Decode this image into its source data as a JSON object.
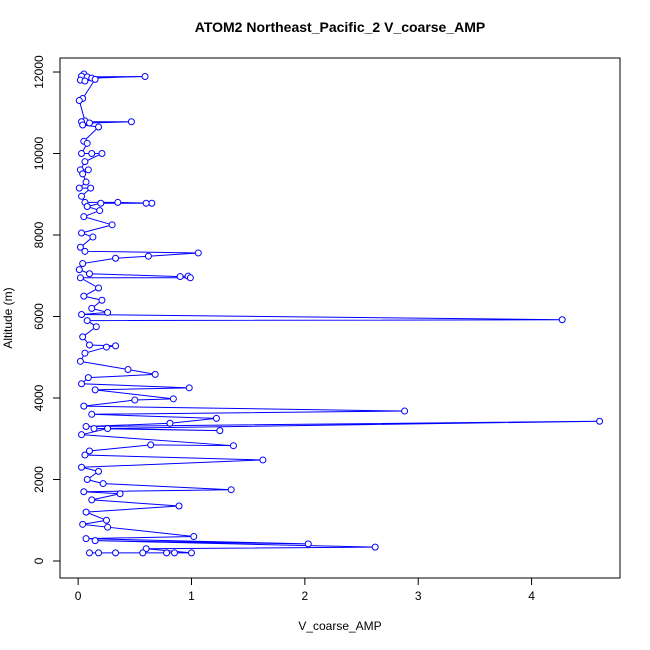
{
  "chart_data": {
    "type": "scatter-line",
    "title": "ATOM2 Northeast_Pacific_2 V_coarse_AMP",
    "x_label": "V_coarse_AMP",
    "y_label": "Altitude (m)",
    "color": "#0000ff",
    "xlim": [
      -0.16,
      4.78
    ],
    "ylim": [
      -417,
      12344
    ],
    "xticks": [
      0,
      1,
      2,
      3,
      4
    ],
    "yticks": [
      0,
      2000,
      4000,
      6000,
      8000,
      10000,
      12000
    ],
    "x": [
      0.05,
      0.03,
      0.08,
      0.59,
      0.12,
      0.02,
      0.06,
      0.15,
      0.04,
      0.01,
      0.06,
      0.03,
      0.47,
      0.1,
      0.04,
      0.18,
      0.05,
      0.08,
      0.03,
      0.12,
      0.21,
      0.06,
      0.02,
      0.09,
      0.04,
      0.07,
      0.01,
      0.11,
      0.03,
      0.06,
      0.35,
      0.65,
      0.6,
      0.2,
      0.08,
      0.19,
      0.05,
      0.3,
      0.03,
      0.13,
      0.02,
      0.06,
      1.06,
      0.62,
      0.33,
      0.04,
      0.01,
      0.1,
      0.9,
      0.97,
      0.99,
      0.02,
      0.18,
      0.05,
      0.21,
      0.12,
      0.26,
      0.03,
      4.27,
      0.08,
      0.16,
      0.04,
      0.1,
      0.33,
      0.25,
      0.06,
      0.02,
      0.44,
      0.68,
      0.09,
      0.03,
      0.98,
      0.15,
      0.84,
      0.5,
      0.05,
      2.88,
      0.12,
      1.22,
      0.81,
      0.07,
      4.6,
      0.14,
      1.25,
      0.26,
      0.03,
      1.37,
      0.64,
      0.1,
      0.06,
      1.63,
      0.03,
      0.18,
      0.08,
      0.22,
      1.35,
      0.05,
      0.37,
      0.12,
      0.89,
      0.07,
      0.25,
      0.04,
      0.26,
      1.02,
      0.07,
      2.03,
      0.15,
      2.62,
      0.6,
      1.0,
      0.85,
      0.78,
      0.57,
      0.33,
      0.18,
      0.1
    ],
    "values": [
      11950,
      11900,
      11880,
      11890,
      11850,
      11800,
      11780,
      11820,
      11350,
      11300,
      10800,
      10780,
      10780,
      10750,
      10700,
      10650,
      10300,
      10250,
      10000,
      10000,
      10000,
      9800,
      9600,
      9600,
      9500,
      9300,
      9150,
      9150,
      8950,
      8800,
      8800,
      8780,
      8780,
      8780,
      8700,
      8600,
      8450,
      8250,
      8050,
      7950,
      7700,
      7600,
      7560,
      7480,
      7430,
      7300,
      7150,
      7050,
      6980,
      6990,
      6950,
      6950,
      6700,
      6500,
      6400,
      6200,
      6100,
      6050,
      5920,
      5900,
      5750,
      5500,
      5300,
      5280,
      5250,
      5100,
      4900,
      4700,
      4580,
      4500,
      4350,
      4250,
      4200,
      3980,
      3950,
      3800,
      3680,
      3600,
      3500,
      3380,
      3300,
      3430,
      3250,
      3200,
      3250,
      3100,
      2830,
      2850,
      2700,
      2600,
      2480,
      2300,
      2200,
      2000,
      1900,
      1750,
      1700,
      1650,
      1500,
      1350,
      1200,
      1000,
      900,
      830,
      600,
      550,
      420,
      500,
      340,
      300,
      200,
      200,
      200,
      200,
      200,
      200,
      200
    ]
  }
}
